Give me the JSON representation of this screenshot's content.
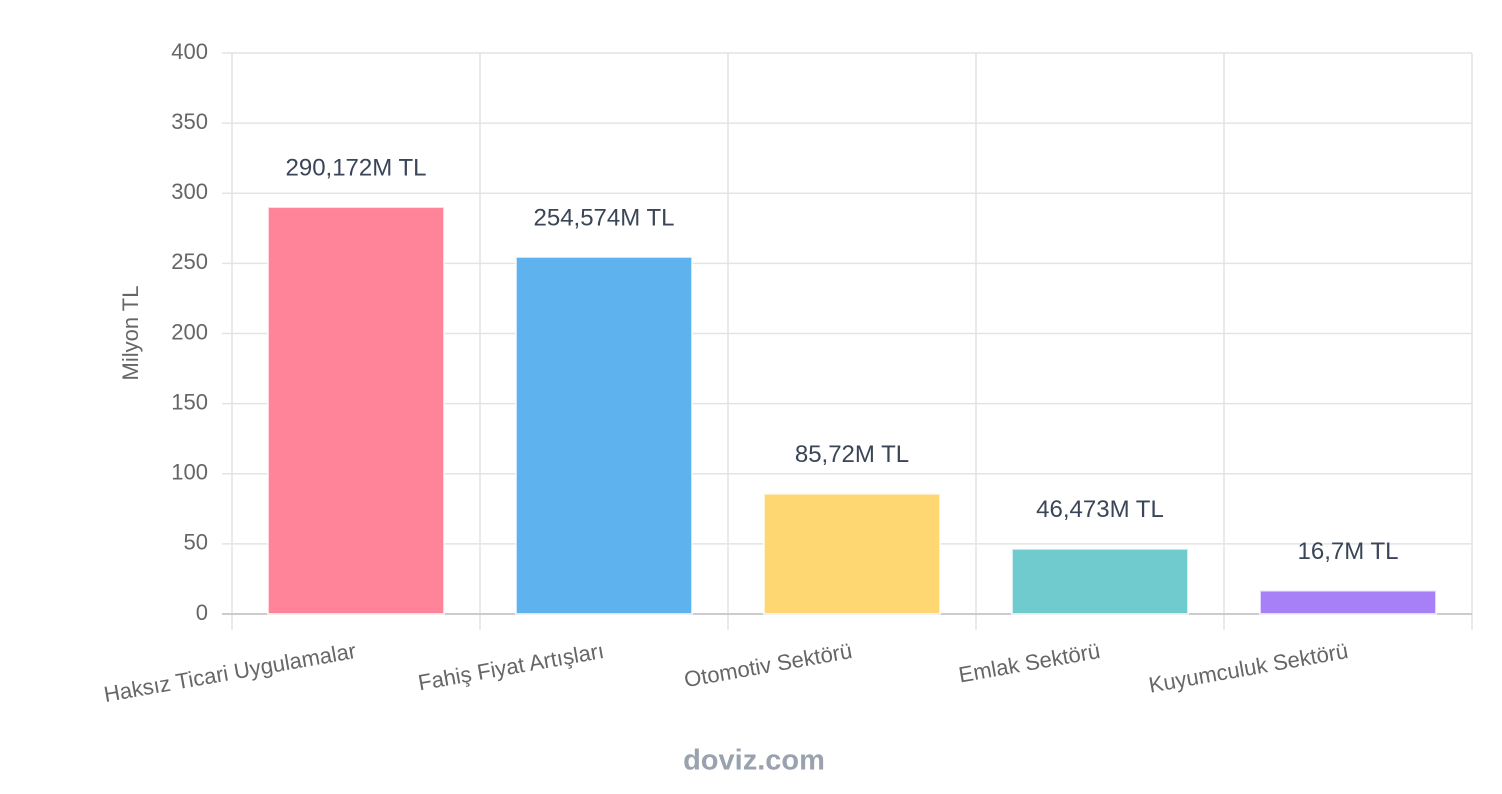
{
  "chart_data": {
    "type": "bar",
    "y_label": "Milyon TL",
    "categories": [
      "Haksız Ticari Uygulamalar",
      "Fahiş Fiyat Artışları",
      "Otomotiv Sektörü",
      "Emlak Sektörü",
      "Kuyumculuk Sektörü"
    ],
    "values": [
      290.172,
      254.574,
      85.72,
      46.473,
      16.7
    ],
    "value_labels": [
      "290,172M TL",
      "254,574M TL",
      "85,72M TL",
      "46,473M TL",
      "16,7M TL"
    ],
    "colors": [
      "#ff8399",
      "#5eb3ee",
      "#ffd772",
      "#6fcbcd",
      "#a780f8"
    ],
    "ylim": [
      0,
      400
    ],
    "yticks": [
      0,
      50,
      100,
      150,
      200,
      250,
      300,
      350,
      400
    ],
    "grid": true,
    "source": "doviz.com"
  }
}
